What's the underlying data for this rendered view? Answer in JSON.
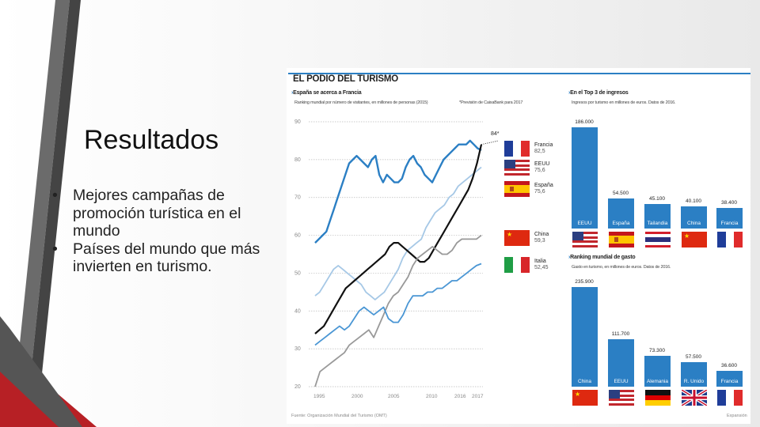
{
  "slide": {
    "title": "Resultados",
    "bullets": [
      "Mejores campañas de promoción turística en el mundo",
      "Países del mundo que más invierten en turismo."
    ]
  },
  "infographic": {
    "title": "EL PODIO DEL TURISMO",
    "accent_color": "#2b7fc4",
    "left_panel": {
      "heading": "España se acerca a Francia",
      "subheading": "Ranking mundial por número de visitantes, en millones de personas (2015)",
      "note": "*Previsión de CaixaBank para 2017",
      "projection_label": "84*"
    },
    "top_panel": {
      "heading": "En el Top 3 de ingresos",
      "subheading": "Ingresos por turismo en millones de euros. Datos de 2016."
    },
    "bottom_panel": {
      "heading": "Ranking mundial de gasto",
      "subheading": "Gasto en turismo, en millones de euros. Datos de 2016."
    },
    "source": "Fuente: Organización Mundial del Turismo (OMT)",
    "credit": "Expansión"
  },
  "chart_data": [
    {
      "type": "line",
      "title": "España se acerca a Francia",
      "ylim": [
        20,
        90
      ],
      "yticks": [
        20,
        30,
        40,
        50,
        60,
        70,
        80,
        90
      ],
      "xticks": [
        "1995",
        "2000",
        "2005",
        "2010",
        "2016",
        "2017"
      ],
      "grid": true,
      "series": [
        {
          "name": "Francia",
          "end_value": "82,5",
          "color": "#2b7fc4",
          "values": [
            58,
            59,
            60,
            61,
            64,
            67,
            70,
            73,
            76,
            79,
            80,
            81,
            80,
            79,
            78,
            80,
            81,
            76,
            74,
            76,
            75,
            74,
            74,
            75,
            78,
            80,
            81,
            79,
            78,
            76,
            75,
            74,
            76,
            78,
            80,
            81,
            82,
            83,
            84,
            84,
            84,
            85,
            84,
            83,
            82.5
          ]
        },
        {
          "name": "EEUU",
          "end_value": "75,6",
          "color": "#a6c8e6",
          "values": [
            44,
            45,
            47,
            49,
            51,
            52,
            51,
            50,
            49,
            48,
            47,
            45,
            44,
            43,
            44,
            45,
            47,
            49,
            51,
            54,
            56,
            57,
            58,
            59,
            62,
            64,
            66,
            67,
            68,
            70,
            71,
            73,
            74,
            75,
            76,
            77,
            78
          ]
        },
        {
          "name": "España",
          "end_value": "75,6",
          "color": "#111111",
          "values": [
            34,
            35,
            36,
            38,
            40,
            42,
            44,
            46,
            47,
            48,
            49,
            50,
            51,
            52,
            53,
            54,
            55,
            57,
            58,
            58,
            57,
            56,
            55,
            54,
            53,
            53,
            54,
            56,
            58,
            60,
            62,
            64,
            66,
            68,
            70,
            72,
            75,
            79,
            84
          ]
        },
        {
          "name": "China",
          "end_value": "59,3",
          "color": "#999999",
          "values": [
            20,
            24,
            25,
            26,
            27,
            28,
            29,
            31,
            32,
            33,
            34,
            35,
            33,
            36,
            39,
            42,
            44,
            45,
            47,
            49,
            52,
            54,
            55,
            56,
            57,
            56,
            55,
            55,
            56,
            58,
            59,
            59,
            59,
            59,
            60
          ]
        },
        {
          "name": "Italia",
          "end_value": "52,45",
          "color": "#4a96d4",
          "values": [
            31,
            32,
            33,
            34,
            35,
            36,
            35,
            36,
            38,
            40,
            41,
            40,
            39,
            40,
            41,
            38,
            37,
            37,
            39,
            42,
            44,
            44,
            44,
            45,
            45,
            46,
            46,
            47,
            48,
            48,
            49,
            50,
            51,
            52,
            52.5
          ]
        }
      ]
    },
    {
      "type": "bar",
      "title": "En el Top 3 de ingresos",
      "categories": [
        "EEUU",
        "España",
        "Tailandia",
        "China",
        "Francia"
      ],
      "values": [
        186000,
        54500,
        45100,
        40100,
        38400
      ],
      "value_labels": [
        "186.000",
        "54.500",
        "45.100",
        "40.100",
        "38.400"
      ]
    },
    {
      "type": "bar",
      "title": "Ranking mundial de gasto",
      "categories": [
        "China",
        "EEUU",
        "Alemania",
        "R. Unido",
        "Francia"
      ],
      "values": [
        235900,
        111700,
        73300,
        57500,
        36600
      ],
      "value_labels": [
        "235.900",
        "111.700",
        "73.300",
        "57.500",
        "36.600"
      ]
    }
  ]
}
